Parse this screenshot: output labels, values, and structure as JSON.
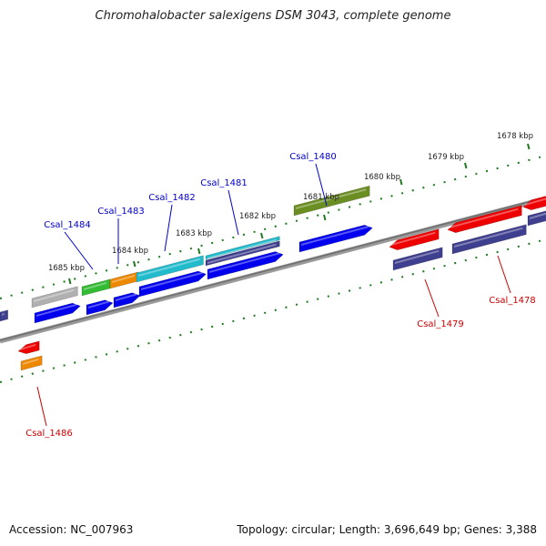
{
  "title": "Chromohalobacter salexigens DSM 3043, complete genome",
  "footer": {
    "accession": "Accession: NC_007963",
    "stats": "Topology: circular; Length: 3,696,649 bp; Genes: 3,388"
  },
  "ticks": [
    "1678 kbp",
    "1679 kbp",
    "1680 kbp",
    "1681 kbp",
    "1682 kbp",
    "1683 kbp",
    "1684 kbp",
    "1685 kbp"
  ],
  "gene_labels": {
    "forward": [
      "Csal_1480",
      "Csal_1481",
      "Csal_1482",
      "Csal_1483",
      "Csal_1484"
    ],
    "reverse": [
      "Csal_1478",
      "Csal_1479",
      "Csal_1486"
    ]
  },
  "colors": {
    "forward_label": "#0000cc",
    "reverse_label": "#cc0000",
    "tick": "#1f7a1f",
    "backbone": "#808080",
    "cds_blue": "#0000ee",
    "cds_red": "#ee0000",
    "cds_navy": "#3f3f8f",
    "cds_gray": "#b0b0b0",
    "cds_green": "#33bb33",
    "cds_orange": "#ee8800",
    "cds_cyan": "#22bbcc",
    "cds_olive": "#6b8e23"
  }
}
